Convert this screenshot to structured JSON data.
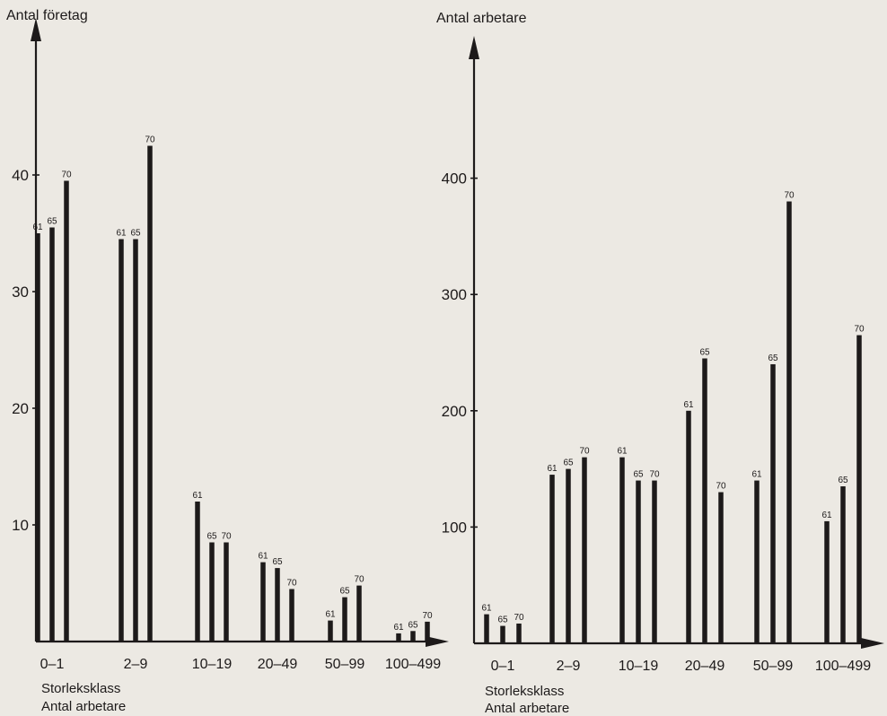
{
  "chart_data": [
    {
      "type": "bar",
      "ylabel": "Antal företag",
      "xlabel_line1": "Storleksklass",
      "xlabel_line2": "Antal arbetare",
      "ylim": [
        0,
        52
      ],
      "yticks": [
        10,
        20,
        30,
        40
      ],
      "series_names": [
        "61",
        "65",
        "70"
      ],
      "groups": [
        {
          "category": "0–1",
          "values": [
            35,
            35.5,
            39.5
          ]
        },
        {
          "category": "2–9",
          "values": [
            34.5,
            34.5,
            42.5
          ]
        },
        {
          "category": "10–19",
          "values": [
            12,
            8.5,
            8.5
          ]
        },
        {
          "category": "20–49",
          "values": [
            6.8,
            6.3,
            4.5
          ]
        },
        {
          "category": "50–99",
          "values": [
            1.8,
            3.8,
            4.8
          ]
        },
        {
          "category": "100–499",
          "values": [
            0.7,
            0.9,
            1.7
          ]
        }
      ]
    },
    {
      "type": "bar",
      "ylabel": "Antal arbetare",
      "xlabel_line1": "Storleksklass",
      "xlabel_line2": "Antal arbetare",
      "ylim": [
        0,
        520
      ],
      "yticks": [
        100,
        200,
        300,
        400
      ],
      "series_names": [
        "61",
        "65",
        "70"
      ],
      "groups": [
        {
          "category": "0–1",
          "values": [
            25,
            15,
            17
          ]
        },
        {
          "category": "2–9",
          "values": [
            145,
            150,
            160
          ]
        },
        {
          "category": "10–19",
          "values": [
            160,
            140,
            140
          ]
        },
        {
          "category": "20–49",
          "values": [
            200,
            245,
            130
          ]
        },
        {
          "category": "50–99",
          "values": [
            140,
            240,
            380
          ]
        },
        {
          "category": "100–499",
          "values": [
            105,
            135,
            265
          ]
        }
      ]
    }
  ]
}
